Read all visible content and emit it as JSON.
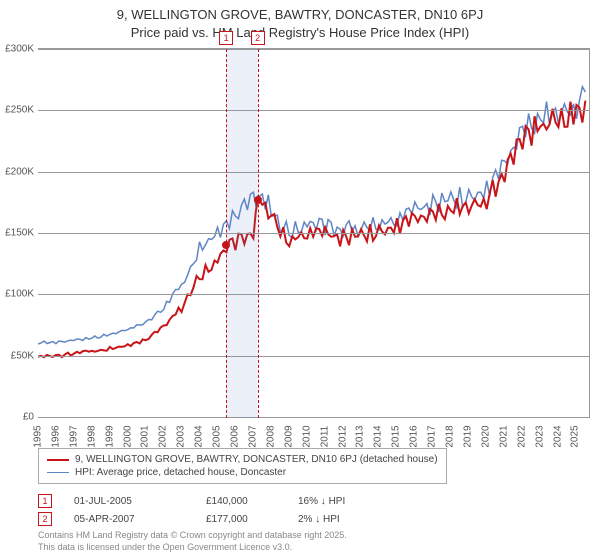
{
  "title_line1": "9, WELLINGTON GROVE, BAWTRY, DONCASTER, DN10 6PJ",
  "title_line2": "Price paid vs. HM Land Registry's House Price Index (HPI)",
  "chart": {
    "type": "line",
    "x_start_year": 1995,
    "x_end_year": 2025,
    "y_min": 0,
    "y_max": 300000,
    "y_ticks": [
      0,
      50000,
      100000,
      150000,
      200000,
      250000,
      300000
    ],
    "y_tick_labels": [
      "£0",
      "£50K",
      "£100K",
      "£150K",
      "£200K",
      "£250K",
      "£300K"
    ],
    "x_ticks": [
      1995,
      1996,
      1997,
      1998,
      1999,
      2000,
      2001,
      2002,
      2003,
      2004,
      2005,
      2006,
      2007,
      2008,
      2009,
      2010,
      2011,
      2012,
      2013,
      2014,
      2015,
      2016,
      2017,
      2018,
      2019,
      2020,
      2021,
      2022,
      2023,
      2024,
      2025
    ],
    "background_color": "#ffffff",
    "grid_color": "#999999",
    "series": [
      {
        "name": "hpi",
        "color": "#6086c6",
        "width": 1.5,
        "points": [
          [
            1995,
            62000
          ],
          [
            1996,
            62000
          ],
          [
            1997,
            64000
          ],
          [
            1998,
            66000
          ],
          [
            1999,
            69000
          ],
          [
            2000,
            73000
          ],
          [
            2001,
            78000
          ],
          [
            2002,
            90000
          ],
          [
            2003,
            110000
          ],
          [
            2004,
            140000
          ],
          [
            2005,
            155000
          ],
          [
            2006,
            168000
          ],
          [
            2007,
            182000
          ],
          [
            2007.5,
            185000
          ],
          [
            2008,
            175000
          ],
          [
            2008.5,
            160000
          ],
          [
            2009,
            155000
          ],
          [
            2010,
            160000
          ],
          [
            2011,
            158000
          ],
          [
            2012,
            157000
          ],
          [
            2013,
            158000
          ],
          [
            2014,
            162000
          ],
          [
            2015,
            166000
          ],
          [
            2016,
            172000
          ],
          [
            2017,
            178000
          ],
          [
            2018,
            182000
          ],
          [
            2019,
            185000
          ],
          [
            2020,
            190000
          ],
          [
            2021,
            210000
          ],
          [
            2022,
            240000
          ],
          [
            2023,
            252000
          ],
          [
            2024,
            256000
          ],
          [
            2025,
            262000
          ],
          [
            2025.5,
            265000
          ]
        ]
      },
      {
        "name": "property",
        "color": "#c81418",
        "width": 2,
        "points": [
          [
            1995,
            51000
          ],
          [
            1996,
            51000
          ],
          [
            1997,
            53000
          ],
          [
            1998,
            55000
          ],
          [
            1999,
            57000
          ],
          [
            2000,
            60000
          ],
          [
            2001,
            64000
          ],
          [
            2002,
            75000
          ],
          [
            2003,
            92000
          ],
          [
            2004,
            118000
          ],
          [
            2005,
            130000
          ],
          [
            2005.5,
            140000
          ],
          [
            2006,
            145000
          ],
          [
            2007,
            155000
          ],
          [
            2007.26,
            177000
          ],
          [
            2007.5,
            180000
          ],
          [
            2008,
            170000
          ],
          [
            2008.5,
            155000
          ],
          [
            2009,
            148000
          ],
          [
            2010,
            155000
          ],
          [
            2011,
            152000
          ],
          [
            2012,
            150000
          ],
          [
            2013,
            152000
          ],
          [
            2014,
            156000
          ],
          [
            2015,
            160000
          ],
          [
            2016,
            165000
          ],
          [
            2017,
            170000
          ],
          [
            2018,
            175000
          ],
          [
            2019,
            178000
          ],
          [
            2020,
            183000
          ],
          [
            2021,
            203000
          ],
          [
            2022,
            232000
          ],
          [
            2023,
            244000
          ],
          [
            2024,
            248000
          ],
          [
            2025,
            255000
          ],
          [
            2025.5,
            258000
          ]
        ]
      }
    ],
    "transactions": [
      {
        "n": "1",
        "year": 2005.5,
        "price": 140000,
        "date_label": "01-JUL-2005",
        "price_label": "£140,000",
        "delta_label": "16% ↓ HPI"
      },
      {
        "n": "2",
        "year": 2007.26,
        "price": 177000,
        "date_label": "05-APR-2007",
        "price_label": "£177,000",
        "delta_label": "2% ↓ HPI"
      }
    ],
    "shade_color": "rgba(96,134,198,0.12)",
    "dash_color": "#c81418",
    "dot_color": "#c81418"
  },
  "legend": {
    "items": [
      {
        "color": "#c81418",
        "width": 2,
        "label": "9, WELLINGTON GROVE, BAWTRY, DONCASTER, DN10 6PJ (detached house)"
      },
      {
        "color": "#6086c6",
        "width": 1.5,
        "label": "HPI: Average price, detached house, Doncaster"
      }
    ]
  },
  "attribution_line1": "Contains HM Land Registry data © Crown copyright and database right 2025.",
  "attribution_line2": "This data is licensed under the Open Government Licence v3.0."
}
